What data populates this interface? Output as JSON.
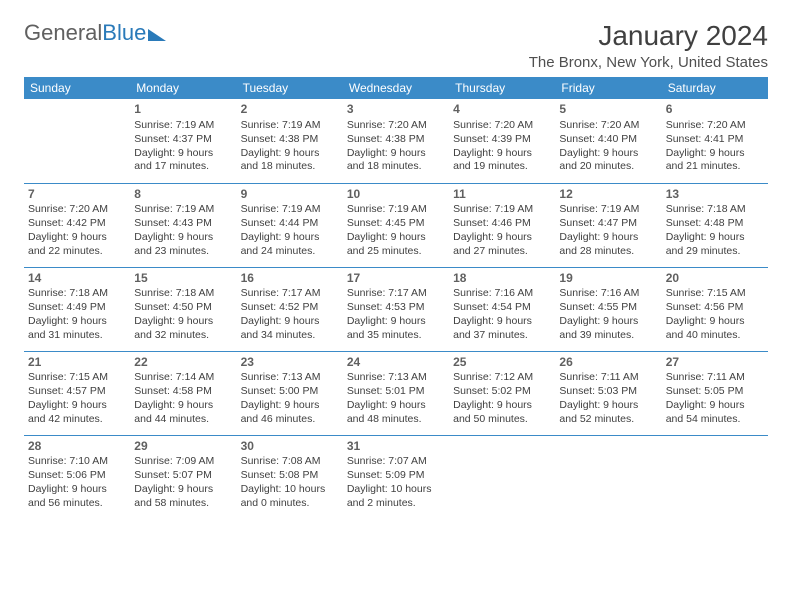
{
  "logo": {
    "text_gray": "General",
    "text_blue": "Blue"
  },
  "title": "January 2024",
  "location": "The Bronx, New York, United States",
  "colors": {
    "header_bg": "#3b8bc8",
    "header_text": "#ffffff",
    "border": "#3b8bc8",
    "body_text": "#404040",
    "daynum": "#606060",
    "brand_blue": "#2a7ab9",
    "bg": "#ffffff"
  },
  "days_of_week": [
    "Sunday",
    "Monday",
    "Tuesday",
    "Wednesday",
    "Thursday",
    "Friday",
    "Saturday"
  ],
  "first_weekday_index": 1,
  "days": [
    {
      "n": 1,
      "sunrise": "7:19 AM",
      "sunset": "4:37 PM",
      "daylight": "9 hours and 17 minutes."
    },
    {
      "n": 2,
      "sunrise": "7:19 AM",
      "sunset": "4:38 PM",
      "daylight": "9 hours and 18 minutes."
    },
    {
      "n": 3,
      "sunrise": "7:20 AM",
      "sunset": "4:38 PM",
      "daylight": "9 hours and 18 minutes."
    },
    {
      "n": 4,
      "sunrise": "7:20 AM",
      "sunset": "4:39 PM",
      "daylight": "9 hours and 19 minutes."
    },
    {
      "n": 5,
      "sunrise": "7:20 AM",
      "sunset": "4:40 PM",
      "daylight": "9 hours and 20 minutes."
    },
    {
      "n": 6,
      "sunrise": "7:20 AM",
      "sunset": "4:41 PM",
      "daylight": "9 hours and 21 minutes."
    },
    {
      "n": 7,
      "sunrise": "7:20 AM",
      "sunset": "4:42 PM",
      "daylight": "9 hours and 22 minutes."
    },
    {
      "n": 8,
      "sunrise": "7:19 AM",
      "sunset": "4:43 PM",
      "daylight": "9 hours and 23 minutes."
    },
    {
      "n": 9,
      "sunrise": "7:19 AM",
      "sunset": "4:44 PM",
      "daylight": "9 hours and 24 minutes."
    },
    {
      "n": 10,
      "sunrise": "7:19 AM",
      "sunset": "4:45 PM",
      "daylight": "9 hours and 25 minutes."
    },
    {
      "n": 11,
      "sunrise": "7:19 AM",
      "sunset": "4:46 PM",
      "daylight": "9 hours and 27 minutes."
    },
    {
      "n": 12,
      "sunrise": "7:19 AM",
      "sunset": "4:47 PM",
      "daylight": "9 hours and 28 minutes."
    },
    {
      "n": 13,
      "sunrise": "7:18 AM",
      "sunset": "4:48 PM",
      "daylight": "9 hours and 29 minutes."
    },
    {
      "n": 14,
      "sunrise": "7:18 AM",
      "sunset": "4:49 PM",
      "daylight": "9 hours and 31 minutes."
    },
    {
      "n": 15,
      "sunrise": "7:18 AM",
      "sunset": "4:50 PM",
      "daylight": "9 hours and 32 minutes."
    },
    {
      "n": 16,
      "sunrise": "7:17 AM",
      "sunset": "4:52 PM",
      "daylight": "9 hours and 34 minutes."
    },
    {
      "n": 17,
      "sunrise": "7:17 AM",
      "sunset": "4:53 PM",
      "daylight": "9 hours and 35 minutes."
    },
    {
      "n": 18,
      "sunrise": "7:16 AM",
      "sunset": "4:54 PM",
      "daylight": "9 hours and 37 minutes."
    },
    {
      "n": 19,
      "sunrise": "7:16 AM",
      "sunset": "4:55 PM",
      "daylight": "9 hours and 39 minutes."
    },
    {
      "n": 20,
      "sunrise": "7:15 AM",
      "sunset": "4:56 PM",
      "daylight": "9 hours and 40 minutes."
    },
    {
      "n": 21,
      "sunrise": "7:15 AM",
      "sunset": "4:57 PM",
      "daylight": "9 hours and 42 minutes."
    },
    {
      "n": 22,
      "sunrise": "7:14 AM",
      "sunset": "4:58 PM",
      "daylight": "9 hours and 44 minutes."
    },
    {
      "n": 23,
      "sunrise": "7:13 AM",
      "sunset": "5:00 PM",
      "daylight": "9 hours and 46 minutes."
    },
    {
      "n": 24,
      "sunrise": "7:13 AM",
      "sunset": "5:01 PM",
      "daylight": "9 hours and 48 minutes."
    },
    {
      "n": 25,
      "sunrise": "7:12 AM",
      "sunset": "5:02 PM",
      "daylight": "9 hours and 50 minutes."
    },
    {
      "n": 26,
      "sunrise": "7:11 AM",
      "sunset": "5:03 PM",
      "daylight": "9 hours and 52 minutes."
    },
    {
      "n": 27,
      "sunrise": "7:11 AM",
      "sunset": "5:05 PM",
      "daylight": "9 hours and 54 minutes."
    },
    {
      "n": 28,
      "sunrise": "7:10 AM",
      "sunset": "5:06 PM",
      "daylight": "9 hours and 56 minutes."
    },
    {
      "n": 29,
      "sunrise": "7:09 AM",
      "sunset": "5:07 PM",
      "daylight": "9 hours and 58 minutes."
    },
    {
      "n": 30,
      "sunrise": "7:08 AM",
      "sunset": "5:08 PM",
      "daylight": "10 hours and 0 minutes."
    },
    {
      "n": 31,
      "sunrise": "7:07 AM",
      "sunset": "5:09 PM",
      "daylight": "10 hours and 2 minutes."
    }
  ]
}
